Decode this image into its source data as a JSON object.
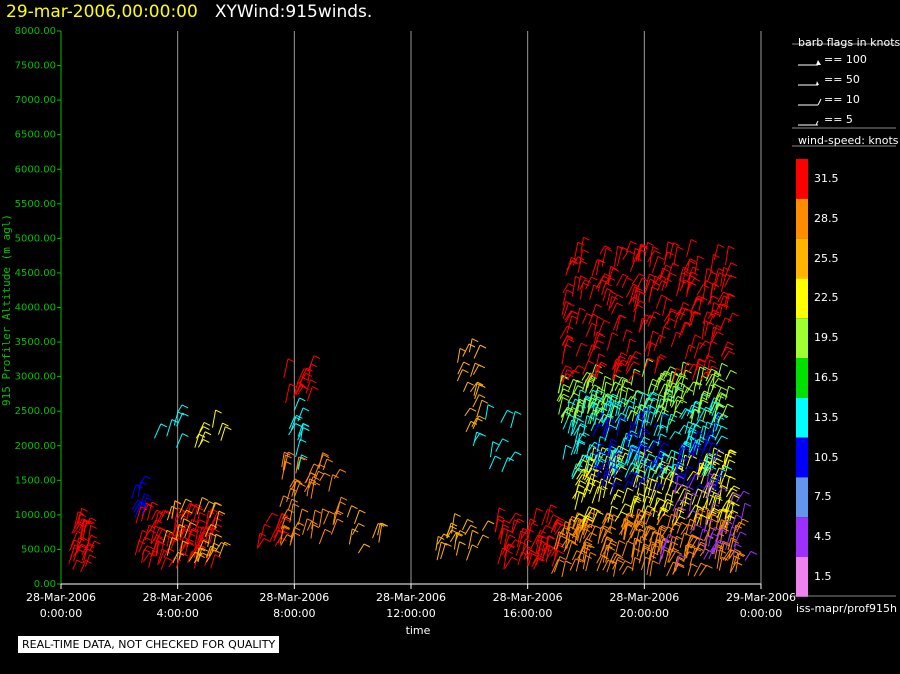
{
  "header": {
    "date": "29-mar-2006,00:00:00",
    "title": "XYWind:915winds."
  },
  "qc_note": "REAL-TIME DATA, NOT CHECKED FOR QUALITY",
  "source": "iss-mapr/prof915h",
  "barb_legend": {
    "title": "barb flags in knots",
    "items": [
      "== 100",
      "== 50",
      "== 10",
      "== 5"
    ]
  },
  "speed_legend": {
    "title": "wind-speed: knots",
    "levels": [
      {
        "label": "31.5",
        "color": "#ff0000"
      },
      {
        "label": "28.5",
        "color": "#ff8c00"
      },
      {
        "label": "25.5",
        "color": "#ffb400"
      },
      {
        "label": "22.5",
        "color": "#ffff00"
      },
      {
        "label": "19.5",
        "color": "#a0ff30"
      },
      {
        "label": "16.5",
        "color": "#00e000"
      },
      {
        "label": "13.5",
        "color": "#00ffff"
      },
      {
        "label": "10.5",
        "color": "#0000ff"
      },
      {
        "label": "7.5",
        "color": "#6495ed"
      },
      {
        "label": "4.5",
        "color": "#9b30ff"
      },
      {
        "label": "1.5",
        "color": "#ee82ee"
      }
    ]
  },
  "colors": {
    "y_axis": "#00c000",
    "x_axis": "#ffffff",
    "grid": "#9a9a9a"
  },
  "chart_data": {
    "type": "scatter",
    "xlabel": "time",
    "ylabel": "915 Profiler Altitude (m agl)",
    "ylim": [
      0,
      8000
    ],
    "xlim_hours": [
      0,
      24
    ],
    "grid": "vertical",
    "y_ticks": [
      "0.00",
      "500.00",
      "1000.00",
      "1500.00",
      "2000.00",
      "2500.00",
      "3000.00",
      "3500.00",
      "4000.00",
      "4500.00",
      "5000.00",
      "5500.00",
      "6000.00",
      "6500.00",
      "7000.00",
      "7500.00",
      "8000.00"
    ],
    "x_ticks": [
      {
        "hour": 0,
        "date": "28-Mar-2006",
        "time": "0:00:00"
      },
      {
        "hour": 4,
        "date": "28-Mar-2006",
        "time": "4:00:00"
      },
      {
        "hour": 8,
        "date": "28-Mar-2006",
        "time": "8:00:00"
      },
      {
        "hour": 12,
        "date": "28-Mar-2006",
        "time": "12:00:00"
      },
      {
        "hour": 16,
        "date": "28-Mar-2006",
        "time": "16:00:00"
      },
      {
        "hour": 20,
        "date": "28-Mar-2006",
        "time": "20:00:00"
      },
      {
        "hour": 24,
        "date": "29-Mar-2006",
        "time": "0:00:00"
      }
    ],
    "clusters": [
      {
        "hour_start": 0.2,
        "hour_end": 1.0,
        "alt_min": 100,
        "alt_max": 900,
        "speed": 31.5,
        "density": 30
      },
      {
        "hour_start": 2.5,
        "hour_end": 5.2,
        "alt_min": 200,
        "alt_max": 1000,
        "speed": 31.5,
        "density": 80
      },
      {
        "hour_start": 3.5,
        "hour_end": 5.5,
        "alt_min": 300,
        "alt_max": 1100,
        "speed": 25.5,
        "density": 30
      },
      {
        "hour_start": 2.3,
        "hour_end": 3.0,
        "alt_min": 900,
        "alt_max": 1400,
        "speed": 10.5,
        "density": 8
      },
      {
        "hour_start": 3.0,
        "hour_end": 4.0,
        "alt_min": 1900,
        "alt_max": 2500,
        "speed": 13.5,
        "density": 6
      },
      {
        "hour_start": 4.5,
        "hour_end": 5.5,
        "alt_min": 1500,
        "alt_max": 2400,
        "speed": 22.5,
        "density": 8
      },
      {
        "hour_start": 6.5,
        "hour_end": 7.5,
        "alt_min": 500,
        "alt_max": 900,
        "speed": 31.5,
        "density": 12
      },
      {
        "hour_start": 7.5,
        "hour_end": 9.5,
        "alt_min": 500,
        "alt_max": 1800,
        "speed": 28.5,
        "density": 50
      },
      {
        "hour_start": 7.6,
        "hour_end": 8.5,
        "alt_min": 2600,
        "alt_max": 3100,
        "speed": 31.5,
        "density": 14
      },
      {
        "hour_start": 7.8,
        "hour_end": 8.3,
        "alt_min": 1600,
        "alt_max": 2600,
        "speed": 13.5,
        "density": 10
      },
      {
        "hour_start": 9.5,
        "hour_end": 11.0,
        "alt_min": 400,
        "alt_max": 1000,
        "speed": 25.5,
        "density": 8
      },
      {
        "hour_start": 12.7,
        "hour_end": 14.5,
        "alt_min": 300,
        "alt_max": 800,
        "speed": 25.5,
        "density": 18
      },
      {
        "hour_start": 14.8,
        "hour_end": 17.0,
        "alt_min": 200,
        "alt_max": 900,
        "speed": 31.5,
        "density": 60
      },
      {
        "hour_start": 13.5,
        "hour_end": 14.3,
        "alt_min": 2200,
        "alt_max": 3400,
        "speed": 25.5,
        "density": 18
      },
      {
        "hour_start": 14.0,
        "hour_end": 15.5,
        "alt_min": 1600,
        "alt_max": 2500,
        "speed": 13.5,
        "density": 10
      },
      {
        "hour_start": 16.8,
        "hour_end": 23.2,
        "alt_min": 100,
        "alt_max": 900,
        "speed": 28.5,
        "density": 200
      },
      {
        "hour_start": 17.5,
        "hour_end": 23.0,
        "alt_min": 800,
        "alt_max": 1800,
        "speed": 22.5,
        "density": 160
      },
      {
        "hour_start": 17.2,
        "hour_end": 22.6,
        "alt_min": 1500,
        "alt_max": 2600,
        "speed": 13.5,
        "density": 170
      },
      {
        "hour_start": 18.0,
        "hour_end": 22.5,
        "alt_min": 1200,
        "alt_max": 2300,
        "speed": 10.5,
        "density": 70
      },
      {
        "hour_start": 17.0,
        "hour_end": 22.8,
        "alt_min": 2300,
        "alt_max": 3000,
        "speed": 19.5,
        "density": 120
      },
      {
        "hour_start": 17.0,
        "hour_end": 23.0,
        "alt_min": 2900,
        "alt_max": 4800,
        "speed": 31.5,
        "density": 220
      },
      {
        "hour_start": 20.5,
        "hour_end": 23.5,
        "alt_min": 200,
        "alt_max": 1400,
        "speed": 4.5,
        "density": 40
      }
    ]
  }
}
